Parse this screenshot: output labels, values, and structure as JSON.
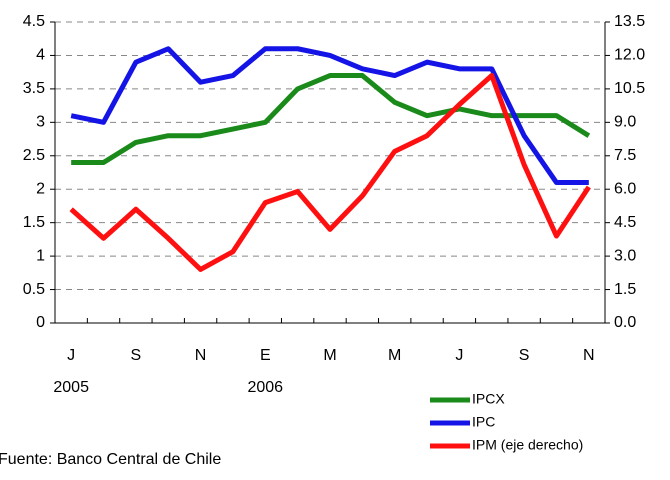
{
  "chart_data": {
    "type": "line",
    "categories": [
      "J",
      null,
      "S",
      null,
      "N",
      null,
      "E",
      null,
      "M",
      null,
      "M",
      null,
      "J",
      null,
      "S",
      null,
      "N"
    ],
    "category_years": [
      "2005",
      null,
      null,
      null,
      null,
      null,
      "2006",
      null,
      null,
      null,
      null,
      null,
      null,
      null,
      null,
      null,
      null
    ],
    "series": [
      {
        "name": "IPCX",
        "color": "#1a8a1a",
        "values": [
          2.4,
          2.4,
          2.7,
          2.8,
          2.8,
          2.9,
          3.0,
          3.5,
          3.7,
          3.7,
          3.3,
          3.1,
          3.2,
          3.1,
          3.1,
          3.1,
          2.8
        ]
      },
      {
        "name": "IPC",
        "color": "#1414e6",
        "values": [
          3.1,
          3.0,
          3.9,
          4.1,
          3.6,
          3.7,
          4.1,
          4.1,
          4.0,
          3.8,
          3.7,
          3.9,
          3.8,
          3.8,
          2.8,
          2.1,
          2.1
        ]
      },
      {
        "name": "IPM (eje derecho)",
        "color": "#ff1010",
        "axis": "y2",
        "values": [
          5.1,
          3.8,
          5.1,
          3.8,
          2.4,
          3.2,
          5.4,
          5.9,
          4.2,
          5.7,
          7.7,
          8.4,
          9.8,
          11.1,
          7.1,
          3.9,
          6.1
        ]
      }
    ],
    "ylim": [
      0,
      4.5
    ],
    "yticks": [
      0,
      0.5,
      1,
      1.5,
      2,
      2.5,
      3,
      3.5,
      4,
      4.5
    ],
    "y2lim": [
      0,
      13.5
    ],
    "y2ticks": [
      {
        "value": 0,
        "label": "0.0"
      },
      {
        "value": 1.5,
        "label": "1.5"
      },
      {
        "value": 3,
        "label": "3.0"
      },
      {
        "value": 4.5,
        "label": "4.5"
      },
      {
        "value": 6,
        "label": "6.0"
      },
      {
        "value": 7.5,
        "label": "7.5"
      },
      {
        "value": 9,
        "label": "9.0"
      },
      {
        "value": 10.5,
        "label": "10.5"
      },
      {
        "value": 12,
        "label": "12.0"
      },
      {
        "value": 13.5,
        "label": "13.5"
      }
    ],
    "grid": true,
    "legend": "bottom-right",
    "source": "Fuente: Banco Central de Chile"
  }
}
